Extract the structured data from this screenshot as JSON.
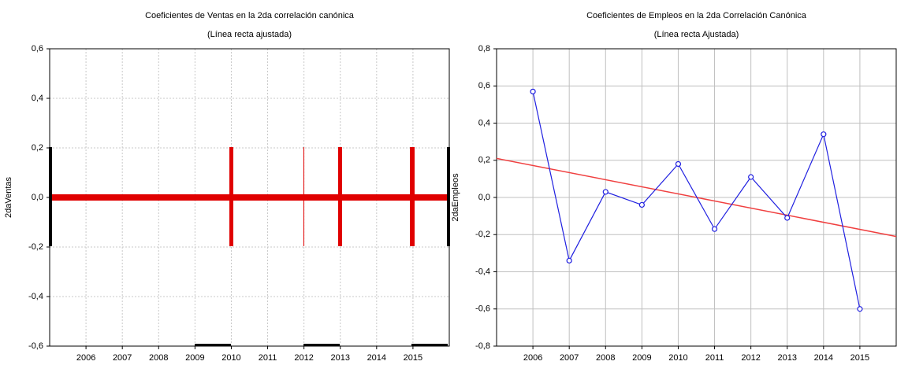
{
  "chart_data": [
    {
      "type": "line",
      "title": "Coeficientes de Ventas en la 2da correlación canónica",
      "subtitle": "(Línea recta ajustada)",
      "y_label": "2daVentas",
      "xlim": [
        2005,
        2016
      ],
      "xticks": [
        2006,
        2007,
        2008,
        2009,
        2010,
        2011,
        2012,
        2013,
        2014,
        2015
      ],
      "ylim": [
        -0.6,
        0.6
      ],
      "yticks": [
        {
          "value": -0.6,
          "label": "-0,6"
        },
        {
          "value": -0.4,
          "label": "-0,4"
        },
        {
          "value": -0.2,
          "label": "-0,2"
        },
        {
          "value": 0,
          "label": "0,0"
        },
        {
          "value": 0.2,
          "label": "0,2"
        },
        {
          "value": 0.4,
          "label": "0,4"
        },
        {
          "value": 0.6,
          "label": "0,6"
        }
      ],
      "grid": true,
      "series": [],
      "fit": {
        "color": "#e00000",
        "x": [
          2005,
          2016
        ],
        "values": [
          0,
          0
        ]
      }
    },
    {
      "type": "line",
      "title": "Coeficientes de Empleos en la 2da Correlación Canónica",
      "subtitle": "(Línea recta Ajustada)",
      "y_label": "2daEmpleos",
      "xlim": [
        2005,
        2016
      ],
      "xticks": [
        2006,
        2007,
        2008,
        2009,
        2010,
        2011,
        2012,
        2013,
        2014,
        2015
      ],
      "ylim": [
        -0.8,
        0.8
      ],
      "yticks": [
        {
          "value": -0.8,
          "label": "-0,8"
        },
        {
          "value": -0.6,
          "label": "-0,6"
        },
        {
          "value": -0.4,
          "label": "-0,4"
        },
        {
          "value": -0.2,
          "label": "-0,2"
        },
        {
          "value": 0,
          "label": "0,0"
        },
        {
          "value": 0.2,
          "label": "0,2"
        },
        {
          "value": 0.4,
          "label": "0,4"
        },
        {
          "value": 0.6,
          "label": "0,6"
        },
        {
          "value": 0.8,
          "label": "0,8"
        }
      ],
      "grid": true,
      "series": [
        {
          "color": "#2020e0",
          "x": [
            2006,
            2007,
            2008,
            2009,
            2010,
            2011,
            2012,
            2013,
            2014,
            2015
          ],
          "values": [
            0.57,
            -0.34,
            0.03,
            -0.04,
            0.18,
            -0.17,
            0.11,
            -0.11,
            0.34,
            -0.6
          ]
        }
      ],
      "fit": {
        "color": "#f04040",
        "x": [
          2005,
          2016
        ],
        "values": [
          0.21,
          -0.21
        ]
      }
    }
  ]
}
